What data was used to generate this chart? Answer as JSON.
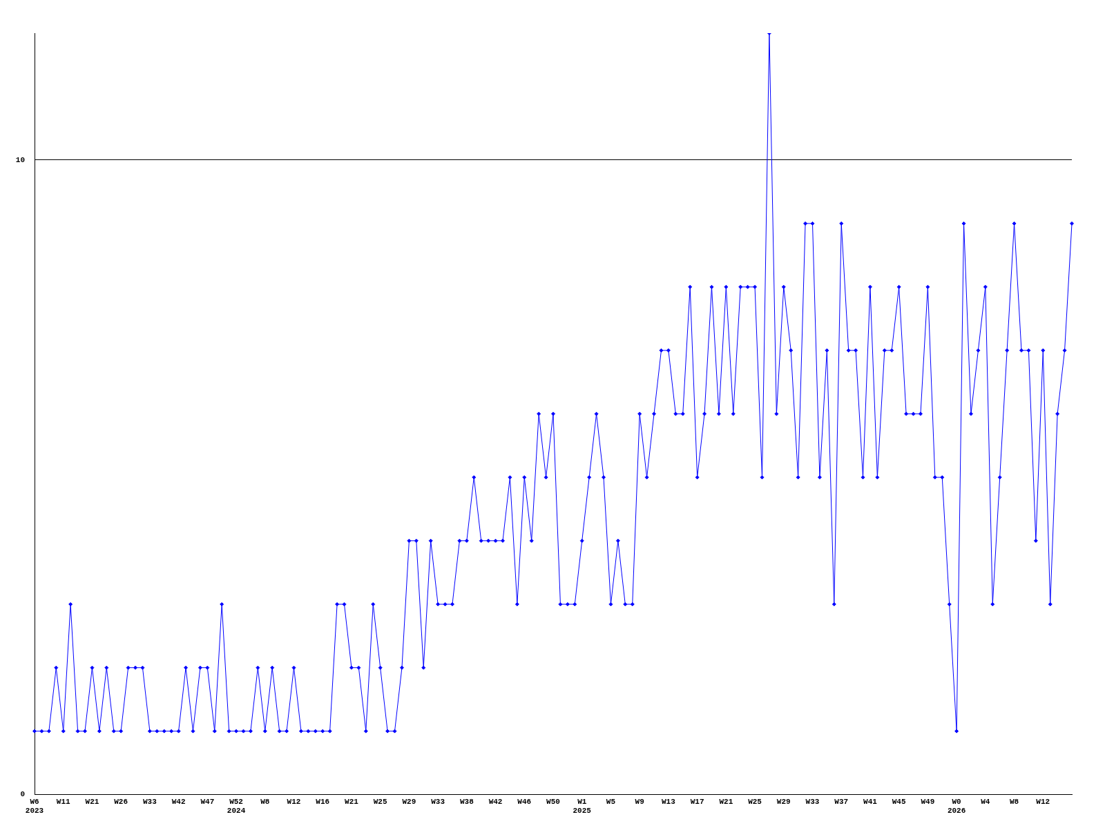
{
  "chart_data": {
    "type": "line",
    "categories": [
      "W6\n2023",
      null,
      null,
      null,
      "W11",
      null,
      null,
      null,
      "W21",
      null,
      null,
      null,
      "W26",
      null,
      null,
      null,
      "W33",
      null,
      null,
      null,
      "W42",
      null,
      null,
      null,
      "W47",
      null,
      null,
      null,
      "W52\n2024",
      null,
      null,
      null,
      "W8",
      null,
      null,
      null,
      "W12",
      null,
      null,
      null,
      "W16",
      null,
      null,
      null,
      "W21",
      null,
      null,
      null,
      "W25",
      null,
      null,
      null,
      "W29",
      null,
      null,
      null,
      "W33",
      null,
      null,
      null,
      "W38",
      null,
      null,
      null,
      "W42",
      null,
      null,
      null,
      "W46",
      null,
      null,
      null,
      "W50",
      null,
      null,
      null,
      "W1\n2025",
      null,
      null,
      null,
      "W5",
      null,
      null,
      null,
      "W9",
      null,
      null,
      null,
      "W13",
      null,
      null,
      null,
      "W17",
      null,
      null,
      null,
      "W21",
      null,
      null,
      null,
      "W25",
      null,
      null,
      null,
      "W29",
      null,
      null,
      null,
      "W33",
      null,
      null,
      null,
      "W37",
      null,
      null,
      null,
      "W41",
      null,
      null,
      null,
      "W45",
      null,
      null,
      null,
      "W49",
      null,
      null,
      null,
      "W0\n2026",
      null,
      null,
      null,
      "W4",
      null,
      null,
      null,
      "W8",
      null,
      null,
      null,
      "W12",
      null,
      null,
      null,
      null
    ],
    "series": [
      {
        "color": "#0000ff",
        "values": [
          1,
          1,
          1,
          2,
          1,
          3,
          1,
          1,
          2,
          1,
          2,
          1,
          1,
          2,
          2,
          2,
          1,
          1,
          1,
          1,
          1,
          2,
          1,
          2,
          2,
          1,
          3,
          1,
          1,
          1,
          1,
          2,
          1,
          2,
          1,
          1,
          2,
          1,
          1,
          1,
          1,
          1,
          3,
          3,
          2,
          2,
          1,
          3,
          2,
          1,
          1,
          2,
          4,
          4,
          2,
          4,
          3,
          3,
          3,
          4,
          4,
          5,
          4,
          4,
          4,
          4,
          5,
          3,
          5,
          4,
          6,
          5,
          6,
          3,
          3,
          3,
          4,
          5,
          6,
          5,
          3,
          4,
          3,
          3,
          6,
          5,
          6,
          7,
          7,
          6,
          6,
          8,
          5,
          6,
          8,
          6,
          8,
          6,
          8,
          8,
          8,
          5,
          12,
          6,
          8,
          7,
          5,
          9,
          9,
          5,
          7,
          3,
          9,
          7,
          7,
          5,
          8,
          5,
          7,
          7,
          8,
          6,
          6,
          6,
          8,
          5,
          5,
          3,
          1,
          9,
          6,
          7,
          8,
          3,
          5,
          7,
          9,
          7,
          7,
          4,
          7,
          3,
          6,
          7,
          9
        ]
      }
    ],
    "ylim": [
      0,
      12
    ],
    "yticks": [
      0,
      10
    ],
    "grid": "y",
    "marker": "diamond",
    "line_style": "solid",
    "legend": false
  }
}
